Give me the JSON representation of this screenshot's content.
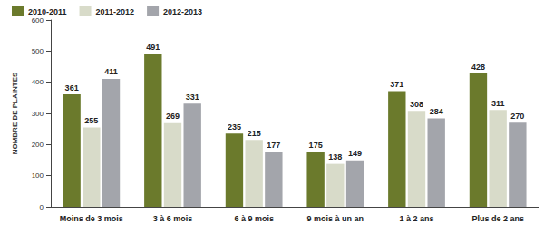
{
  "chart_data": {
    "type": "bar",
    "ylabel": "NOMBRE DE PLAINTES",
    "categories": [
      "Moins de 3 mois",
      "3 à 6 mois",
      "6 à 9 mois",
      "9 mois à un an",
      "1 à 2 ans",
      "Plus de 2 ans"
    ],
    "series": [
      {
        "name": "2010-2011",
        "color": "#6b7a2c",
        "values": [
          361,
          491,
          235,
          175,
          371,
          428
        ]
      },
      {
        "name": "2011-2012",
        "color": "#d8dbc9",
        "values": [
          255,
          269,
          215,
          138,
          308,
          311
        ]
      },
      {
        "name": "2012-2013",
        "color": "#a3a5ab",
        "values": [
          411,
          331,
          177,
          149,
          284,
          270
        ]
      }
    ],
    "ylim": [
      0,
      600
    ],
    "yticks": [
      0,
      100,
      200,
      300,
      400,
      500,
      600
    ],
    "grid": false,
    "legend": "top-left",
    "data_labels": true
  }
}
